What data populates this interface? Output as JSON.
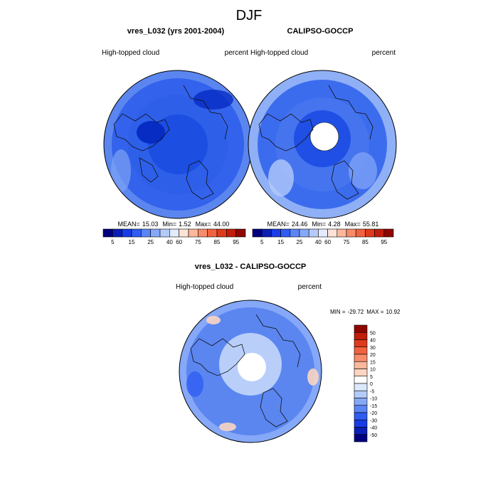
{
  "page": {
    "title": "DJF"
  },
  "chart_data": [
    {
      "type": "heatmap",
      "projection": "north polar stereographic",
      "title": "vres_L032 (yrs 2001-2004)",
      "left_label": "High-topped cloud",
      "right_label": "percent",
      "stats": {
        "mean_label": "MEAN=",
        "mean": "15.03",
        "min_label": "Min=",
        "min": "1.52",
        "max_label": "Max=",
        "max": "44.00"
      },
      "colorbar": {
        "orientation": "horizontal",
        "tick_labels": [
          "5",
          "15",
          "25",
          "40",
          "60",
          "75",
          "85",
          "95"
        ],
        "colors": [
          "#00007f",
          "#0a1fb4",
          "#1a3ce6",
          "#2f5cf2",
          "#5b84f5",
          "#86a8f8",
          "#b4cbfa",
          "#e3ecfd",
          "#fde2d5",
          "#fbb89c",
          "#f88c6a",
          "#f1623f",
          "#de3a1c",
          "#c01d0b",
          "#8e0600"
        ]
      },
      "regional_pattern": {
        "pole_interior": "#062cc4",
        "high_latitude_ring": "#1c4ee2",
        "mid_latitude_band": "#2d5fe9",
        "outer_rim": "#5b86f0"
      }
    },
    {
      "type": "heatmap",
      "projection": "north polar stereographic",
      "title": "CALIPSO-GOCCP",
      "left_label": "High-topped cloud",
      "right_label": "percent",
      "stats": {
        "mean_label": "MEAN=",
        "mean": "24.46",
        "min_label": "Min=",
        "min": "4.28",
        "max_label": "Max=",
        "max": "55.81"
      },
      "colorbar": {
        "orientation": "horizontal",
        "tick_labels": [
          "5",
          "15",
          "25",
          "40",
          "60",
          "75",
          "85",
          "95"
        ],
        "colors": [
          "#00007f",
          "#0a1fb4",
          "#1a3ce6",
          "#2f5cf2",
          "#5b84f5",
          "#86a8f8",
          "#b4cbfa",
          "#e3ecfd",
          "#fde2d5",
          "#fbb89c",
          "#f88c6a",
          "#f1623f",
          "#de3a1c",
          "#c01d0b",
          "#8e0600"
        ]
      },
      "regional_pattern": {
        "pole_interior": "#ffffff",
        "high_latitude_ring": "#1f4fe4",
        "mid_latitude_band": "#4574ee",
        "outer_rim": "#8fb0f6"
      }
    },
    {
      "type": "heatmap",
      "projection": "north polar stereographic",
      "title": "vres_L032 - CALIPSO-GOCCP",
      "left_label": "High-topped cloud",
      "right_label": "percent",
      "stats": {
        "min_label": "MIN =",
        "min": "-29.72",
        "max_label": "MAX =",
        "max": "10.92"
      },
      "colorbar": {
        "orientation": "vertical",
        "tick_labels": [
          "50",
          "40",
          "30",
          "20",
          "15",
          "10",
          "5",
          "0",
          "-5",
          "-10",
          "-15",
          "-20",
          "-30",
          "-40",
          "-50"
        ],
        "colors": [
          "#8e0600",
          "#c01d0b",
          "#de3a1c",
          "#f1623f",
          "#f88c6a",
          "#fbb89c",
          "#fdd5c2",
          "#ffffff",
          "#dce8fc",
          "#b4cbfa",
          "#86a8f8",
          "#5b84f5",
          "#2f5cf2",
          "#1a3ce6",
          "#0a1fb4",
          "#00007f"
        ]
      },
      "regional_pattern": {
        "pole_interior": "#ffffff",
        "high_latitude_ring": "#b9cffa",
        "mid_latitude_band": "#5b86f0",
        "outer_rim": "#86a8f8"
      }
    }
  ]
}
